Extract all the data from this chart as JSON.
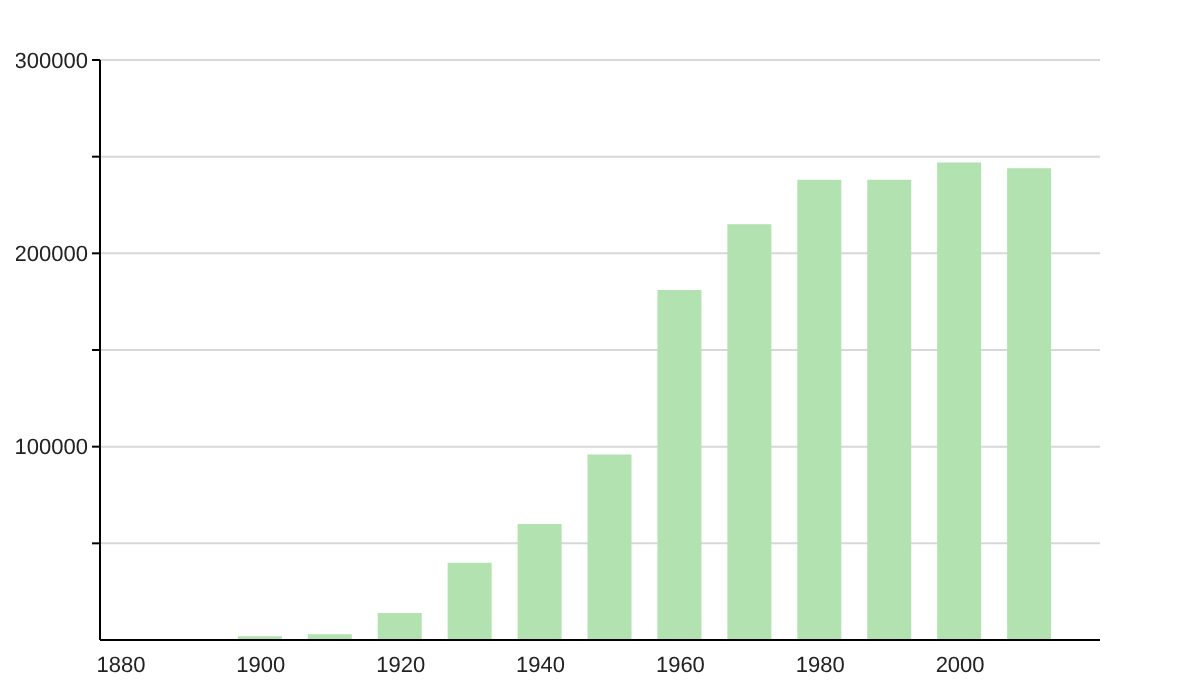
{
  "chart_data": {
    "type": "bar",
    "x": [
      1900,
      1910,
      1920,
      1930,
      1940,
      1950,
      1960,
      1970,
      1980,
      1990,
      2000,
      2010
    ],
    "values": [
      2000,
      3000,
      14000,
      40000,
      60000,
      96000,
      181000,
      215000,
      238000,
      238000,
      247000,
      244000
    ],
    "color": "#b2e2b0",
    "xlim": [
      1877,
      2020
    ],
    "xticks": [
      1880,
      1900,
      1920,
      1940,
      1960,
      1980,
      2000
    ],
    "ylim": [
      0,
      300000
    ],
    "yticks": [
      {
        "value": 50000,
        "label": null
      },
      100000,
      {
        "value": 150000,
        "label": null
      },
      200000,
      {
        "value": 250000,
        "label": null
      },
      300000
    ],
    "grid": "y"
  }
}
